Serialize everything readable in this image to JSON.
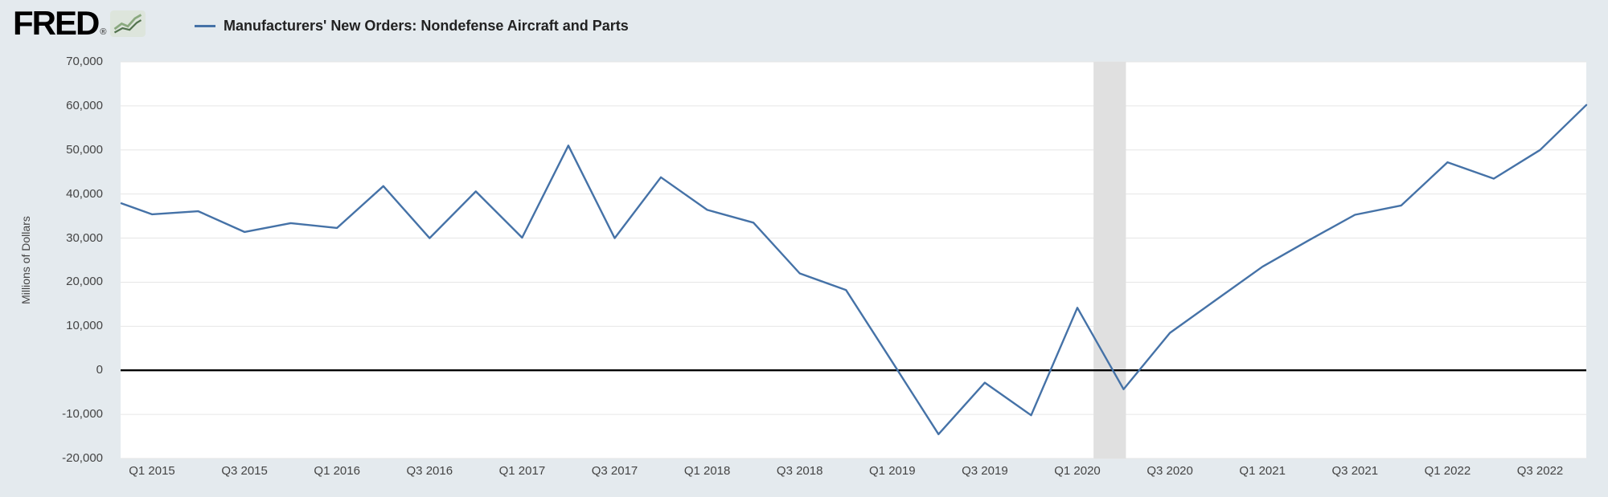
{
  "header": {
    "logo_text": "FRED",
    "logo_registered": "®",
    "legend_label": "Manufacturers' New Orders: Nondefense Aircraft and Parts"
  },
  "icons": {
    "logo_chart_icon": "sparkline-chart-icon"
  },
  "colors": {
    "background": "#e4eaee",
    "plot_bg": "#ffffff",
    "grid": "#e6e6e6",
    "axis_text": "#444444",
    "line": "#4572a7",
    "zero_line": "#000000",
    "recession_band": "#e0e0e0"
  },
  "chart_data": {
    "type": "line",
    "title": "Manufacturers' New Orders: Nondefense Aircraft and Parts",
    "xlabel": "",
    "ylabel": "Millions of Dollars",
    "ylim": [
      -20000,
      70000
    ],
    "grid": true,
    "legend_position": "top-left",
    "zero_line": true,
    "y_ticks": [
      {
        "value": 70000,
        "label": "70,000"
      },
      {
        "value": 60000,
        "label": "60,000"
      },
      {
        "value": 50000,
        "label": "50,000"
      },
      {
        "value": 40000,
        "label": "40,000"
      },
      {
        "value": 30000,
        "label": "30,000"
      },
      {
        "value": 20000,
        "label": "20,000"
      },
      {
        "value": 10000,
        "label": "10,000"
      },
      {
        "value": 0,
        "label": "0"
      },
      {
        "value": -10000,
        "label": "-10,000"
      },
      {
        "value": -20000,
        "label": "-20,000"
      }
    ],
    "x_tick_labels": [
      "Q1 2015",
      "Q3 2015",
      "Q1 2016",
      "Q3 2016",
      "Q1 2017",
      "Q3 2017",
      "Q1 2018",
      "Q3 2018",
      "Q1 2019",
      "Q3 2019",
      "Q1 2020",
      "Q3 2020",
      "Q1 2021",
      "Q3 2021",
      "Q1 2022",
      "Q3 2022"
    ],
    "recession_band": {
      "from_quarter_index": 21.35,
      "to_quarter_index": 22.05,
      "color": "#e0e0e0"
    },
    "series": [
      {
        "name": "Manufacturers' New Orders: Nondefense Aircraft and Parts",
        "color": "#4572a7",
        "points": [
          {
            "q": "Q4 2014",
            "v": 37900
          },
          {
            "q": "Q1 2015",
            "v": 35400
          },
          {
            "q": "Q2 2015",
            "v": 36100
          },
          {
            "q": "Q3 2015",
            "v": 31400
          },
          {
            "q": "Q4 2015",
            "v": 33400
          },
          {
            "q": "Q1 2016",
            "v": 32300
          },
          {
            "q": "Q2 2016",
            "v": 41800
          },
          {
            "q": "Q3 2016",
            "v": 30000
          },
          {
            "q": "Q4 2016",
            "v": 40600
          },
          {
            "q": "Q1 2017",
            "v": 30100
          },
          {
            "q": "Q2 2017",
            "v": 51000
          },
          {
            "q": "Q3 2017",
            "v": 30000
          },
          {
            "q": "Q4 2017",
            "v": 43800
          },
          {
            "q": "Q1 2018",
            "v": 36400
          },
          {
            "q": "Q2 2018",
            "v": 33500
          },
          {
            "q": "Q3 2018",
            "v": 22000
          },
          {
            "q": "Q4 2018",
            "v": 18200
          },
          {
            "q": "Q1 2019",
            "v": 1900
          },
          {
            "q": "Q2 2019",
            "v": -14500
          },
          {
            "q": "Q3 2019",
            "v": -2800
          },
          {
            "q": "Q4 2019",
            "v": -10200
          },
          {
            "q": "Q1 2020",
            "v": 14200
          },
          {
            "q": "Q2 2020",
            "v": -4300
          },
          {
            "q": "Q3 2020",
            "v": 8500
          },
          {
            "q": "Q4 2020",
            "v": 16000
          },
          {
            "q": "Q1 2021",
            "v": 23500
          },
          {
            "q": "Q2 2021",
            "v": 29500
          },
          {
            "q": "Q3 2021",
            "v": 35300
          },
          {
            "q": "Q4 2021",
            "v": 37400
          },
          {
            "q": "Q1 2022",
            "v": 47200
          },
          {
            "q": "Q2 2022",
            "v": 43500
          },
          {
            "q": "Q3 2022",
            "v": 50000
          },
          {
            "q": "Q4 2022",
            "v": 60200
          }
        ]
      }
    ]
  }
}
